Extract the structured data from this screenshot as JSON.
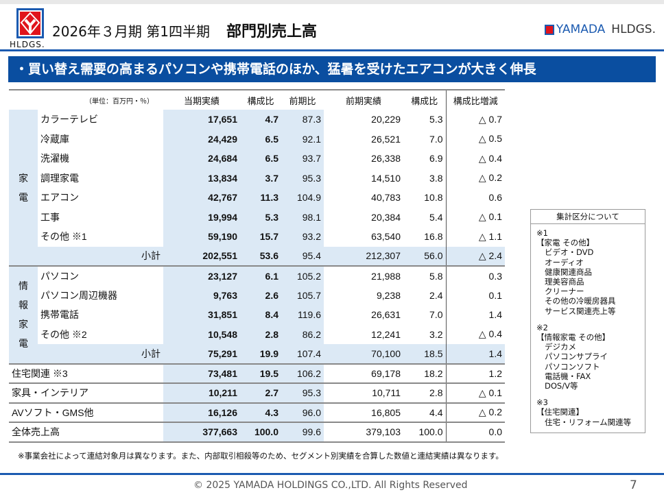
{
  "header": {
    "logo_sub": "HLDGS.",
    "period": "2026年３月期 第1四半期",
    "title": "部門別売上高",
    "brand_main": "YAMADA",
    "brand_sub": "HLDGS."
  },
  "banner": "・買い替え需要の高まるパソコンや携帯電話のほか、猛暑を受けたエアコンが大きく伸長",
  "table": {
    "unit": "（単位：百万円・％）",
    "columns": [
      "当期実績",
      "構成比",
      "前期比",
      "前期実績",
      "構成比",
      "構成比増減"
    ],
    "groups": [
      {
        "label": "家電",
        "rows": [
          {
            "name": "カラーテレビ",
            "cur": "17,651",
            "ratio": "4.7",
            "yoy": "87.3",
            "prev": "20,229",
            "pratio": "5.3",
            "chg": "△ 0.7"
          },
          {
            "name": "冷蔵庫",
            "cur": "24,429",
            "ratio": "6.5",
            "yoy": "92.1",
            "prev": "26,521",
            "pratio": "7.0",
            "chg": "△ 0.5"
          },
          {
            "name": "洗濯機",
            "cur": "24,684",
            "ratio": "6.5",
            "yoy": "93.7",
            "prev": "26,338",
            "pratio": "6.9",
            "chg": "△ 0.4"
          },
          {
            "name": "調理家電",
            "cur": "13,834",
            "ratio": "3.7",
            "yoy": "95.3",
            "prev": "14,510",
            "pratio": "3.8",
            "chg": "△ 0.2"
          },
          {
            "name": "エアコン",
            "cur": "42,767",
            "ratio": "11.3",
            "yoy": "104.9",
            "prev": "40,783",
            "pratio": "10.8",
            "chg": "0.6"
          },
          {
            "name": "工事",
            "cur": "19,994",
            "ratio": "5.3",
            "yoy": "98.1",
            "prev": "20,384",
            "pratio": "5.4",
            "chg": "△ 0.1"
          },
          {
            "name": "その他 ※1",
            "cur": "59,190",
            "ratio": "15.7",
            "yoy": "93.2",
            "prev": "63,540",
            "pratio": "16.8",
            "chg": "△ 1.1"
          }
        ],
        "subtotal": {
          "name": "小計",
          "cur": "202,551",
          "ratio": "53.6",
          "yoy": "95.4",
          "prev": "212,307",
          "pratio": "56.0",
          "chg": "△ 2.4"
        }
      },
      {
        "label": "情報家電",
        "rows": [
          {
            "name": "パソコン",
            "cur": "23,127",
            "ratio": "6.1",
            "yoy": "105.2",
            "prev": "21,988",
            "pratio": "5.8",
            "chg": "0.3"
          },
          {
            "name": "パソコン周辺機器",
            "cur": "9,763",
            "ratio": "2.6",
            "yoy": "105.7",
            "prev": "9,238",
            "pratio": "2.4",
            "chg": "0.1"
          },
          {
            "name": "携帯電話",
            "cur": "31,851",
            "ratio": "8.4",
            "yoy": "119.6",
            "prev": "26,631",
            "pratio": "7.0",
            "chg": "1.4"
          },
          {
            "name": "その他 ※2",
            "cur": "10,548",
            "ratio": "2.8",
            "yoy": "86.2",
            "prev": "12,241",
            "pratio": "3.2",
            "chg": "△ 0.4"
          }
        ],
        "subtotal": {
          "name": "小計",
          "cur": "75,291",
          "ratio": "19.9",
          "yoy": "107.4",
          "prev": "70,100",
          "pratio": "18.5",
          "chg": "1.4"
        }
      }
    ],
    "others": [
      {
        "name": "住宅関連 ※3",
        "cur": "73,481",
        "ratio": "19.5",
        "yoy": "106.2",
        "prev": "69,178",
        "pratio": "18.2",
        "chg": "1.2"
      },
      {
        "name": "家具・インテリア",
        "cur": "10,211",
        "ratio": "2.7",
        "yoy": "95.3",
        "prev": "10,711",
        "pratio": "2.8",
        "chg": "△ 0.1"
      },
      {
        "name": "AVソフト・GMS他",
        "cur": "16,126",
        "ratio": "4.3",
        "yoy": "96.0",
        "prev": "16,805",
        "pratio": "4.4",
        "chg": "△ 0.2"
      },
      {
        "name": "全体売上高",
        "cur": "377,663",
        "ratio": "100.0",
        "yoy": "99.6",
        "prev": "379,103",
        "pratio": "100.0",
        "chg": "0.0"
      }
    ]
  },
  "notes": {
    "title": "集計区分について",
    "sections": [
      {
        "mark": "※1",
        "head": "【家電 その他】",
        "items": [
          "ビデオ・DVD",
          "オーディオ",
          "健康関連商品",
          "理美容商品",
          "クリーナー",
          "その他の冷暖房器具",
          "サービス関連売上等"
        ]
      },
      {
        "mark": "※2",
        "head": "【情報家電 その他】",
        "items": [
          "デジカメ",
          "パソコンサプライ",
          "パソコンソフト",
          "電話機・FAX",
          "DOS/V等"
        ]
      },
      {
        "mark": "※3",
        "head": "【住宅関連】",
        "items": [
          "住宅・リフォーム関連等"
        ]
      }
    ]
  },
  "footnote": "※事業会社によって連結対象月は異なります。また、内部取引相殺等のため、セグメント別実績を合算した数値と連結実績は異なります。",
  "footer": {
    "copyright": "© 2025 YAMADA HOLDINGS CO.,LTD. All Rights Reserved",
    "page": "7"
  },
  "colors": {
    "brand_blue": "#0a4ea0",
    "logo_red": "#e0141c",
    "cell_blue": "#dce9f5"
  }
}
